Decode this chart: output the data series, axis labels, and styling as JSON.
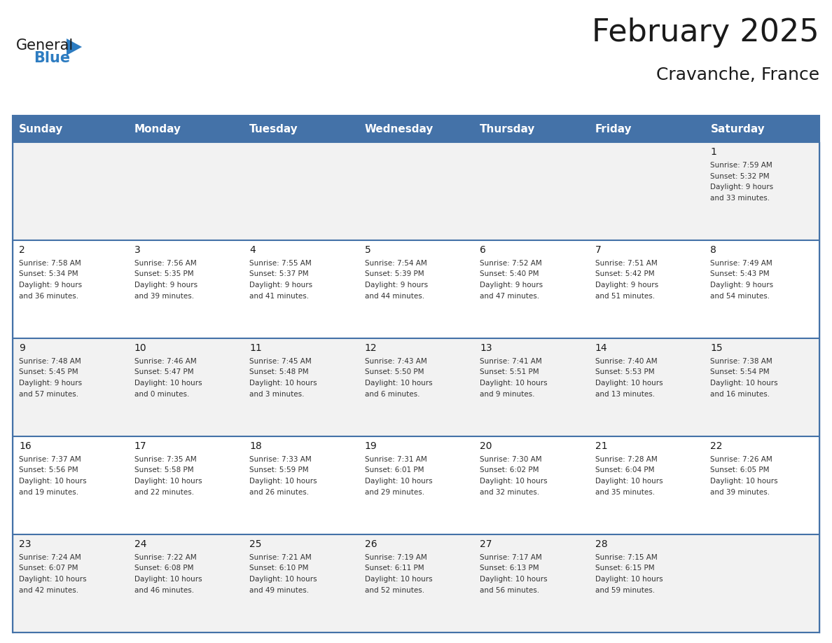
{
  "title": "February 2025",
  "subtitle": "Cravanche, France",
  "days_of_week": [
    "Sunday",
    "Monday",
    "Tuesday",
    "Wednesday",
    "Thursday",
    "Friday",
    "Saturday"
  ],
  "header_bg": "#4472a8",
  "header_text": "#ffffff",
  "odd_row_bg": "#f2f2f2",
  "even_row_bg": "#ffffff",
  "border_color": "#4472a8",
  "cell_text_color": "#333333",
  "day_num_color": "#1a1a1a",
  "logo_general_color": "#1a1a1a",
  "logo_blue_color": "#2d7cc1",
  "calendar_data": [
    {
      "day": 1,
      "week": 0,
      "dow": 6,
      "sunrise": "7:59 AM",
      "sunset": "5:32 PM",
      "daylight": "9 hours and 33 minutes"
    },
    {
      "day": 2,
      "week": 1,
      "dow": 0,
      "sunrise": "7:58 AM",
      "sunset": "5:34 PM",
      "daylight": "9 hours and 36 minutes"
    },
    {
      "day": 3,
      "week": 1,
      "dow": 1,
      "sunrise": "7:56 AM",
      "sunset": "5:35 PM",
      "daylight": "9 hours and 39 minutes"
    },
    {
      "day": 4,
      "week": 1,
      "dow": 2,
      "sunrise": "7:55 AM",
      "sunset": "5:37 PM",
      "daylight": "9 hours and 41 minutes"
    },
    {
      "day": 5,
      "week": 1,
      "dow": 3,
      "sunrise": "7:54 AM",
      "sunset": "5:39 PM",
      "daylight": "9 hours and 44 minutes"
    },
    {
      "day": 6,
      "week": 1,
      "dow": 4,
      "sunrise": "7:52 AM",
      "sunset": "5:40 PM",
      "daylight": "9 hours and 47 minutes"
    },
    {
      "day": 7,
      "week": 1,
      "dow": 5,
      "sunrise": "7:51 AM",
      "sunset": "5:42 PM",
      "daylight": "9 hours and 51 minutes"
    },
    {
      "day": 8,
      "week": 1,
      "dow": 6,
      "sunrise": "7:49 AM",
      "sunset": "5:43 PM",
      "daylight": "9 hours and 54 minutes"
    },
    {
      "day": 9,
      "week": 2,
      "dow": 0,
      "sunrise": "7:48 AM",
      "sunset": "5:45 PM",
      "daylight": "9 hours and 57 minutes"
    },
    {
      "day": 10,
      "week": 2,
      "dow": 1,
      "sunrise": "7:46 AM",
      "sunset": "5:47 PM",
      "daylight": "10 hours and 0 minutes"
    },
    {
      "day": 11,
      "week": 2,
      "dow": 2,
      "sunrise": "7:45 AM",
      "sunset": "5:48 PM",
      "daylight": "10 hours and 3 minutes"
    },
    {
      "day": 12,
      "week": 2,
      "dow": 3,
      "sunrise": "7:43 AM",
      "sunset": "5:50 PM",
      "daylight": "10 hours and 6 minutes"
    },
    {
      "day": 13,
      "week": 2,
      "dow": 4,
      "sunrise": "7:41 AM",
      "sunset": "5:51 PM",
      "daylight": "10 hours and 9 minutes"
    },
    {
      "day": 14,
      "week": 2,
      "dow": 5,
      "sunrise": "7:40 AM",
      "sunset": "5:53 PM",
      "daylight": "10 hours and 13 minutes"
    },
    {
      "day": 15,
      "week": 2,
      "dow": 6,
      "sunrise": "7:38 AM",
      "sunset": "5:54 PM",
      "daylight": "10 hours and 16 minutes"
    },
    {
      "day": 16,
      "week": 3,
      "dow": 0,
      "sunrise": "7:37 AM",
      "sunset": "5:56 PM",
      "daylight": "10 hours and 19 minutes"
    },
    {
      "day": 17,
      "week": 3,
      "dow": 1,
      "sunrise": "7:35 AM",
      "sunset": "5:58 PM",
      "daylight": "10 hours and 22 minutes"
    },
    {
      "day": 18,
      "week": 3,
      "dow": 2,
      "sunrise": "7:33 AM",
      "sunset": "5:59 PM",
      "daylight": "10 hours and 26 minutes"
    },
    {
      "day": 19,
      "week": 3,
      "dow": 3,
      "sunrise": "7:31 AM",
      "sunset": "6:01 PM",
      "daylight": "10 hours and 29 minutes"
    },
    {
      "day": 20,
      "week": 3,
      "dow": 4,
      "sunrise": "7:30 AM",
      "sunset": "6:02 PM",
      "daylight": "10 hours and 32 minutes"
    },
    {
      "day": 21,
      "week": 3,
      "dow": 5,
      "sunrise": "7:28 AM",
      "sunset": "6:04 PM",
      "daylight": "10 hours and 35 minutes"
    },
    {
      "day": 22,
      "week": 3,
      "dow": 6,
      "sunrise": "7:26 AM",
      "sunset": "6:05 PM",
      "daylight": "10 hours and 39 minutes"
    },
    {
      "day": 23,
      "week": 4,
      "dow": 0,
      "sunrise": "7:24 AM",
      "sunset": "6:07 PM",
      "daylight": "10 hours and 42 minutes"
    },
    {
      "day": 24,
      "week": 4,
      "dow": 1,
      "sunrise": "7:22 AM",
      "sunset": "6:08 PM",
      "daylight": "10 hours and 46 minutes"
    },
    {
      "day": 25,
      "week": 4,
      "dow": 2,
      "sunrise": "7:21 AM",
      "sunset": "6:10 PM",
      "daylight": "10 hours and 49 minutes"
    },
    {
      "day": 26,
      "week": 4,
      "dow": 3,
      "sunrise": "7:19 AM",
      "sunset": "6:11 PM",
      "daylight": "10 hours and 52 minutes"
    },
    {
      "day": 27,
      "week": 4,
      "dow": 4,
      "sunrise": "7:17 AM",
      "sunset": "6:13 PM",
      "daylight": "10 hours and 56 minutes"
    },
    {
      "day": 28,
      "week": 4,
      "dow": 5,
      "sunrise": "7:15 AM",
      "sunset": "6:15 PM",
      "daylight": "10 hours and 59 minutes"
    }
  ],
  "num_weeks": 5
}
